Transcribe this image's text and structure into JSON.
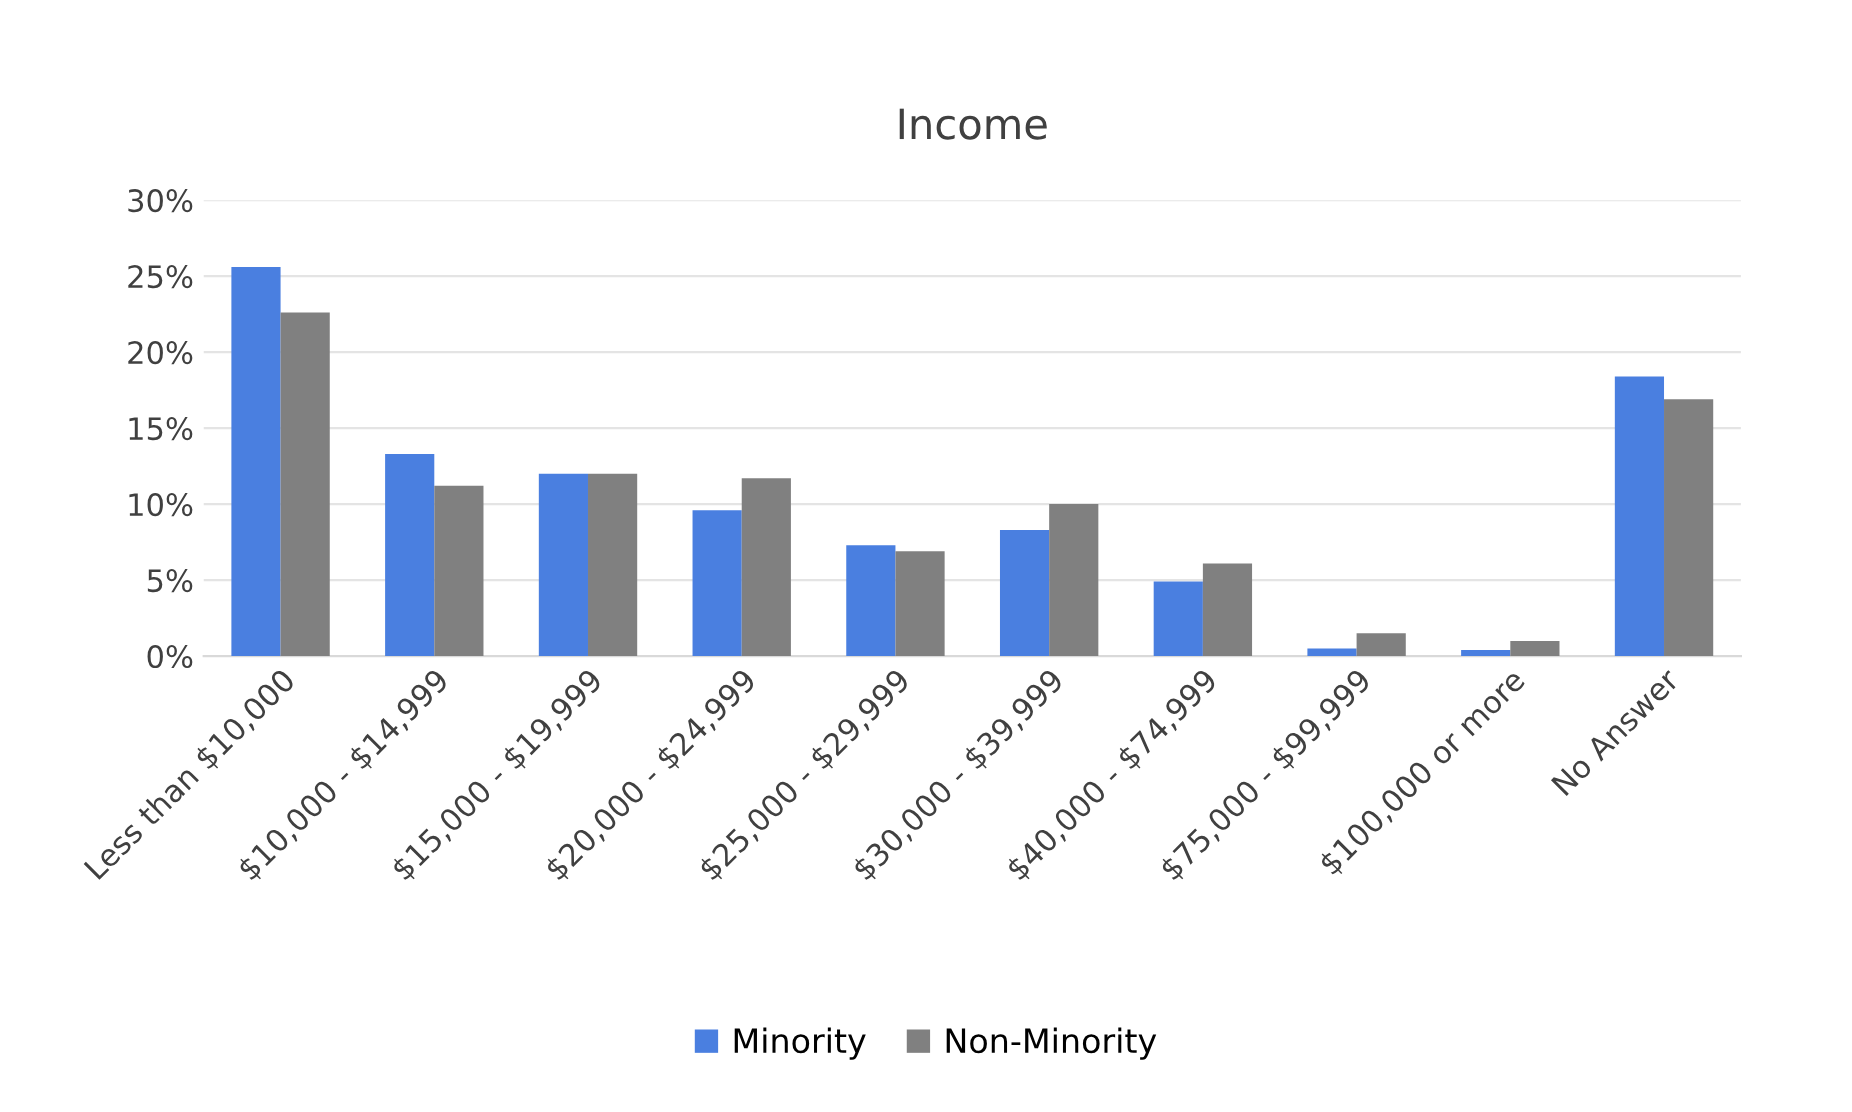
{
  "chart_data": {
    "type": "bar",
    "title": "Income",
    "categories": [
      "Less than $10,000",
      "$10,000 - $14,999",
      "$15,000 - $19,999",
      "$20,000 - $24,999",
      "$25,000 - $29,999",
      "$30,000 - $39,999",
      "$40,000 - $74,999",
      "$75,000 - $99,999",
      "$100,000 or more",
      "No Answer"
    ],
    "series": [
      {
        "name": "Minority",
        "color": "#4a7fe0",
        "values": [
          25.6,
          13.3,
          12.0,
          9.6,
          7.3,
          8.3,
          4.9,
          0.5,
          0.4,
          18.4
        ]
      },
      {
        "name": "Non-Minority",
        "color": "#808080",
        "values": [
          22.6,
          11.2,
          12.0,
          11.7,
          6.9,
          10.0,
          6.1,
          1.5,
          1.0,
          16.9
        ]
      }
    ],
    "ylim": [
      0,
      30
    ],
    "yticks": [
      {
        "value": 0,
        "label": "0%"
      },
      {
        "value": 5,
        "label": "5%"
      },
      {
        "value": 10,
        "label": "10%"
      },
      {
        "value": 15,
        "label": "15%"
      },
      {
        "value": 20,
        "label": "20%"
      },
      {
        "value": 25,
        "label": "25%"
      },
      {
        "value": 30,
        "label": "30%"
      }
    ],
    "grid": "y",
    "legend": "bottom"
  }
}
